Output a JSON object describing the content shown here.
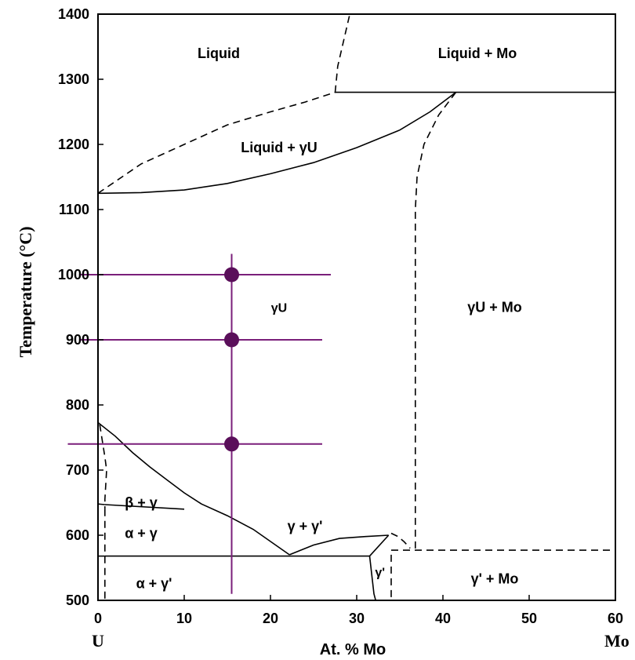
{
  "chart_data": {
    "type": "scatter",
    "title": "",
    "xlabel": "At. % Mo",
    "ylabel": "Temperature (°C)",
    "xlim": [
      0,
      60
    ],
    "ylim": [
      500,
      1400
    ],
    "x_ticks": [
      0,
      10,
      20,
      30,
      40,
      50,
      60
    ],
    "y_ticks": [
      500,
      600,
      700,
      800,
      900,
      1000,
      1100,
      1200,
      1300,
      1400
    ],
    "x_end_labels": {
      "left": "U",
      "right": "Mo"
    },
    "grid": false,
    "colors": {
      "marker": "#5a0f5a",
      "guide": "#7a1f7a",
      "boundary": "#000000"
    },
    "regions": [
      {
        "label": "Liquid",
        "x": 14,
        "y": 1340
      },
      {
        "label": "Liquid + Mo",
        "x": 44,
        "y": 1340
      },
      {
        "label": "Liquid + γU",
        "x": 21,
        "y": 1195
      },
      {
        "label": "γU",
        "x": 21,
        "y": 950
      },
      {
        "label": "γU + Mo",
        "x": 46,
        "y": 950
      },
      {
        "label": "β + γ",
        "x": 5,
        "y": 650
      },
      {
        "label": "α + γ",
        "x": 5,
        "y": 603
      },
      {
        "label": "γ + γ'",
        "x": 24,
        "y": 614
      },
      {
        "label": "α + γ'",
        "x": 6.5,
        "y": 526
      },
      {
        "label": "γ'",
        "x": 32.7,
        "y": 544
      },
      {
        "label": "γ' + Mo",
        "x": 46,
        "y": 533
      }
    ],
    "points": [
      {
        "x": 15.5,
        "y": 1000
      },
      {
        "x": 15.5,
        "y": 900
      },
      {
        "x": 15.5,
        "y": 740
      }
    ],
    "guide_lines": {
      "vertical": {
        "x": 15.5,
        "y_range": [
          510,
          1032
        ]
      },
      "horizontal": [
        {
          "y": 1000,
          "x_range": [
            -2.2,
            27
          ]
        },
        {
          "y": 900,
          "x_range": [
            -2.2,
            26
          ]
        },
        {
          "y": 740,
          "x_range": [
            -3.5,
            26
          ]
        }
      ]
    },
    "boundaries": [
      {
        "style": "solid",
        "points": [
          [
            0,
            1125
          ],
          [
            5,
            1126
          ],
          [
            10,
            1130
          ],
          [
            15,
            1140
          ],
          [
            20,
            1155
          ],
          [
            25,
            1172
          ],
          [
            30,
            1195
          ],
          [
            35,
            1222
          ],
          [
            38.5,
            1250
          ],
          [
            41.5,
            1280
          ]
        ]
      },
      {
        "style": "solid",
        "points": [
          [
            27.5,
            1280
          ],
          [
            60,
            1280
          ]
        ]
      },
      {
        "style": "dash",
        "points": [
          [
            0,
            1125
          ],
          [
            5,
            1170
          ],
          [
            10,
            1200
          ],
          [
            15,
            1230
          ],
          [
            20,
            1250
          ],
          [
            24,
            1265
          ],
          [
            27.5,
            1280
          ]
        ]
      },
      {
        "style": "dash",
        "points": [
          [
            27.5,
            1280
          ],
          [
            27.8,
            1320
          ],
          [
            28.5,
            1360
          ],
          [
            29.2,
            1400
          ]
        ]
      },
      {
        "style": "dash",
        "points": [
          [
            41.5,
            1280
          ],
          [
            39.5,
            1245
          ],
          [
            37.8,
            1200
          ],
          [
            37,
            1150
          ],
          [
            36.8,
            1100
          ],
          [
            36.8,
            700
          ],
          [
            36.8,
            577
          ]
        ]
      },
      {
        "style": "dash",
        "points": [
          [
            34,
            577
          ],
          [
            60,
            577
          ]
        ]
      },
      {
        "style": "dash",
        "points": [
          [
            34,
            505
          ],
          [
            34,
            577
          ]
        ]
      },
      {
        "style": "dash",
        "points": [
          [
            34,
            603
          ],
          [
            34.8,
            598
          ],
          [
            35.5,
            590
          ],
          [
            36.2,
            580
          ]
        ]
      },
      {
        "style": "solid",
        "points": [
          [
            0,
            773
          ],
          [
            2,
            752
          ],
          [
            4,
            727
          ],
          [
            6,
            705
          ],
          [
            8,
            685
          ],
          [
            10,
            665
          ],
          [
            12,
            648
          ],
          [
            15,
            630
          ],
          [
            18,
            609
          ],
          [
            22.2,
            570
          ]
        ]
      },
      {
        "style": "solid",
        "points": [
          [
            0.8,
            647
          ],
          [
            10,
            640
          ]
        ]
      },
      {
        "style": "solid",
        "points": [
          [
            0.8,
            568
          ],
          [
            31.5,
            568
          ]
        ]
      },
      {
        "style": "solid",
        "points": [
          [
            22.2,
            570
          ],
          [
            25,
            585
          ],
          [
            28,
            595
          ],
          [
            31,
            598
          ],
          [
            33.7,
            600
          ]
        ]
      },
      {
        "style": "solid",
        "points": [
          [
            31.5,
            568
          ],
          [
            33.7,
            600
          ]
        ]
      },
      {
        "style": "solid",
        "points": [
          [
            31.5,
            568
          ],
          [
            32,
            510
          ],
          [
            32.2,
            500
          ]
        ]
      },
      {
        "style": "dash",
        "points": [
          [
            0.2,
            770
          ],
          [
            0.5,
            745
          ],
          [
            0.8,
            720
          ],
          [
            1,
            700
          ],
          [
            0.8,
            655
          ],
          [
            0.8,
            640
          ]
        ]
      },
      {
        "style": "dash",
        "points": [
          [
            0.8,
            640
          ],
          [
            0.8,
            500
          ]
        ]
      },
      {
        "style": "solid",
        "points": [
          [
            0,
            648
          ],
          [
            0.8,
            647
          ]
        ]
      },
      {
        "style": "dash",
        "points": [
          [
            0,
            568
          ],
          [
            0.8,
            568
          ]
        ]
      }
    ]
  }
}
